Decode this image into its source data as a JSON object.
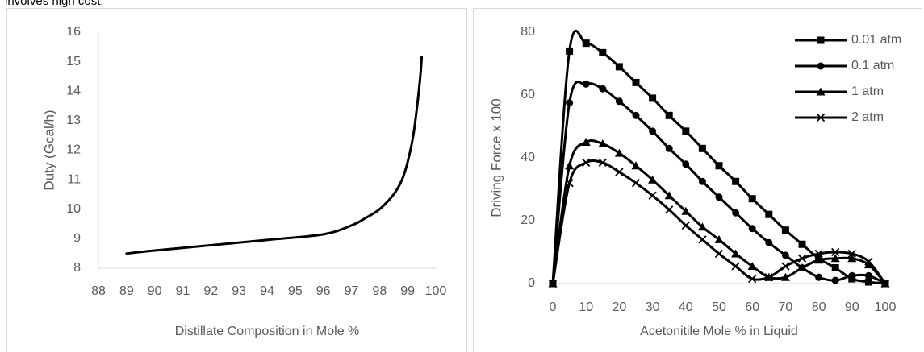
{
  "header_text": "involves high cost.",
  "chart_data": [
    {
      "type": "line",
      "ylabel": "Duty (Gcal/h)",
      "xlabel": "Distillate Composition in Mole %",
      "x": [
        89,
        90,
        92,
        94,
        96,
        97,
        97.5,
        98,
        98.5,
        98.8,
        99,
        99.2,
        99.35,
        99.45,
        99.5
      ],
      "values": [
        8.5,
        8.6,
        8.78,
        8.96,
        9.15,
        9.45,
        9.7,
        10.0,
        10.5,
        11.0,
        11.6,
        12.5,
        13.6,
        14.5,
        15.15
      ],
      "color": "#000000",
      "xlim": [
        88,
        100
      ],
      "xticks": [
        88,
        89,
        90,
        91,
        92,
        93,
        94,
        95,
        96,
        97,
        98,
        99,
        100
      ],
      "ylim": [
        8,
        16
      ],
      "yticks": [
        8,
        9,
        10,
        11,
        12,
        13,
        14,
        15,
        16
      ]
    },
    {
      "type": "line",
      "ylabel": "Driving Force x 100",
      "xlabel": "Acetonitile Mole % in Liquid",
      "x": [
        0,
        5,
        10,
        15,
        20,
        25,
        30,
        35,
        40,
        45,
        50,
        55,
        60,
        65,
        70,
        75,
        80,
        85,
        90,
        95,
        100
      ],
      "series": [
        {
          "name": "0.01 atm",
          "color": "#000000",
          "marker": "square",
          "values": [
            0,
            74,
            76.5,
            73.5,
            69,
            64,
            59,
            53.5,
            48.5,
            43,
            37.5,
            32.5,
            27,
            22,
            17,
            12.5,
            8,
            5,
            1.5,
            0.5,
            0
          ]
        },
        {
          "name": "0.1 atm",
          "color": "#000000",
          "marker": "circle",
          "values": [
            0,
            57.5,
            63.5,
            62,
            58,
            53.5,
            48.5,
            43,
            38,
            32.5,
            27.5,
            22.5,
            17.5,
            13,
            9,
            5,
            2,
            1,
            2.5,
            2.5,
            0
          ]
        },
        {
          "name": "1 atm",
          "color": "#000000",
          "marker": "triangle",
          "values": [
            0,
            37.5,
            45,
            44.5,
            41.5,
            37.5,
            33,
            28,
            23,
            18,
            14,
            9.5,
            5.5,
            2,
            2,
            5,
            7.5,
            8,
            8,
            6,
            0
          ]
        },
        {
          "name": "2 atm",
          "color": "#000000",
          "marker": "x",
          "values": [
            0,
            32,
            38.5,
            38.5,
            35.5,
            32,
            28,
            23.5,
            18.5,
            14,
            9.5,
            5.5,
            1.5,
            2,
            5.5,
            8,
            9.5,
            10,
            9.5,
            7,
            0
          ]
        }
      ],
      "xlim": [
        0,
        100
      ],
      "xticks": [
        0,
        10,
        20,
        30,
        40,
        50,
        60,
        70,
        80,
        90,
        100
      ],
      "ylim": [
        0,
        80
      ],
      "yticks": [
        0,
        20,
        40,
        60,
        80
      ],
      "legend": "upper right"
    }
  ]
}
